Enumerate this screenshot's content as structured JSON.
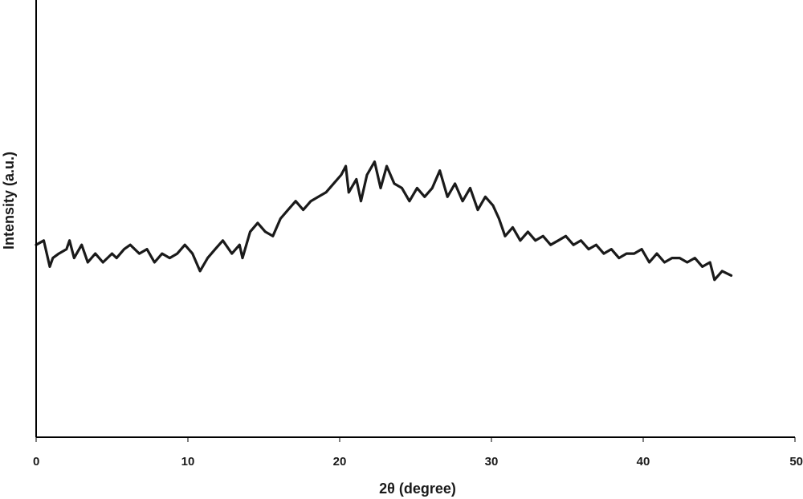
{
  "chart_data": {
    "type": "line",
    "title": "",
    "xlabel": "2θ (degree)",
    "ylabel": "Intensity (a.u.)",
    "xlim": [
      0,
      50
    ],
    "ylim": [
      0,
      100
    ],
    "x_ticks": [
      0,
      10,
      20,
      30,
      40,
      50
    ],
    "x_tick_labels": [
      "0",
      "10",
      "20",
      "30",
      "40",
      "50"
    ],
    "y_tick_labels": [],
    "grid": false,
    "legend": "none",
    "line_color": "#1a1a1a",
    "series": [
      {
        "x": [
          0,
          0.5,
          0.9,
          1.1,
          1.5,
          2.0,
          2.2,
          2.5,
          3.0,
          3.4,
          3.9,
          4.4,
          5.0,
          5.3,
          5.8,
          6.2,
          6.8,
          7.3,
          7.8,
          8.3,
          8.8,
          9.3,
          9.8,
          10.3,
          10.8,
          11.3,
          11.8,
          12.3,
          12.9,
          13.4,
          13.6,
          14.1,
          14.6,
          15.1,
          15.6,
          16.1,
          16.6,
          17.1,
          17.6,
          18.1,
          18.6,
          19.1,
          19.6,
          20.1,
          20.4,
          20.6,
          21.1,
          21.4,
          21.8,
          22.3,
          22.7,
          23.1,
          23.6,
          24.1,
          24.6,
          25.1,
          25.6,
          26.1,
          26.6,
          27.1,
          27.6,
          28.1,
          28.6,
          29.1,
          29.6,
          30.1,
          30.5,
          30.9,
          31.4,
          31.9,
          32.4,
          32.9,
          33.4,
          33.9,
          34.4,
          34.9,
          35.4,
          35.9,
          36.4,
          36.9,
          37.4,
          37.9,
          38.4,
          38.9,
          39.4,
          39.9,
          40.4,
          40.9,
          41.4,
          41.9,
          42.4,
          42.9,
          43.4,
          43.9,
          44.4,
          44.7,
          45.2,
          45.8
        ],
        "y": [
          44,
          45,
          39,
          41,
          42,
          43,
          45,
          41,
          44,
          40,
          42,
          40,
          42,
          41,
          43,
          44,
          42,
          43,
          40,
          42,
          41,
          42,
          44,
          42,
          38,
          41,
          43,
          45,
          42,
          44,
          41,
          47,
          49,
          47,
          46,
          50,
          52,
          54,
          52,
          54,
          55,
          56,
          58,
          60,
          62,
          56,
          59,
          54,
          60,
          63,
          57,
          62,
          58,
          57,
          54,
          57,
          55,
          57,
          61,
          55,
          58,
          54,
          57,
          52,
          55,
          53,
          50,
          46,
          48,
          45,
          47,
          45,
          46,
          44,
          45,
          46,
          44,
          45,
          43,
          44,
          42,
          43,
          41,
          42,
          42,
          43,
          40,
          42,
          40,
          41,
          41,
          40,
          41,
          39,
          40,
          36,
          38,
          37
        ]
      }
    ]
  }
}
